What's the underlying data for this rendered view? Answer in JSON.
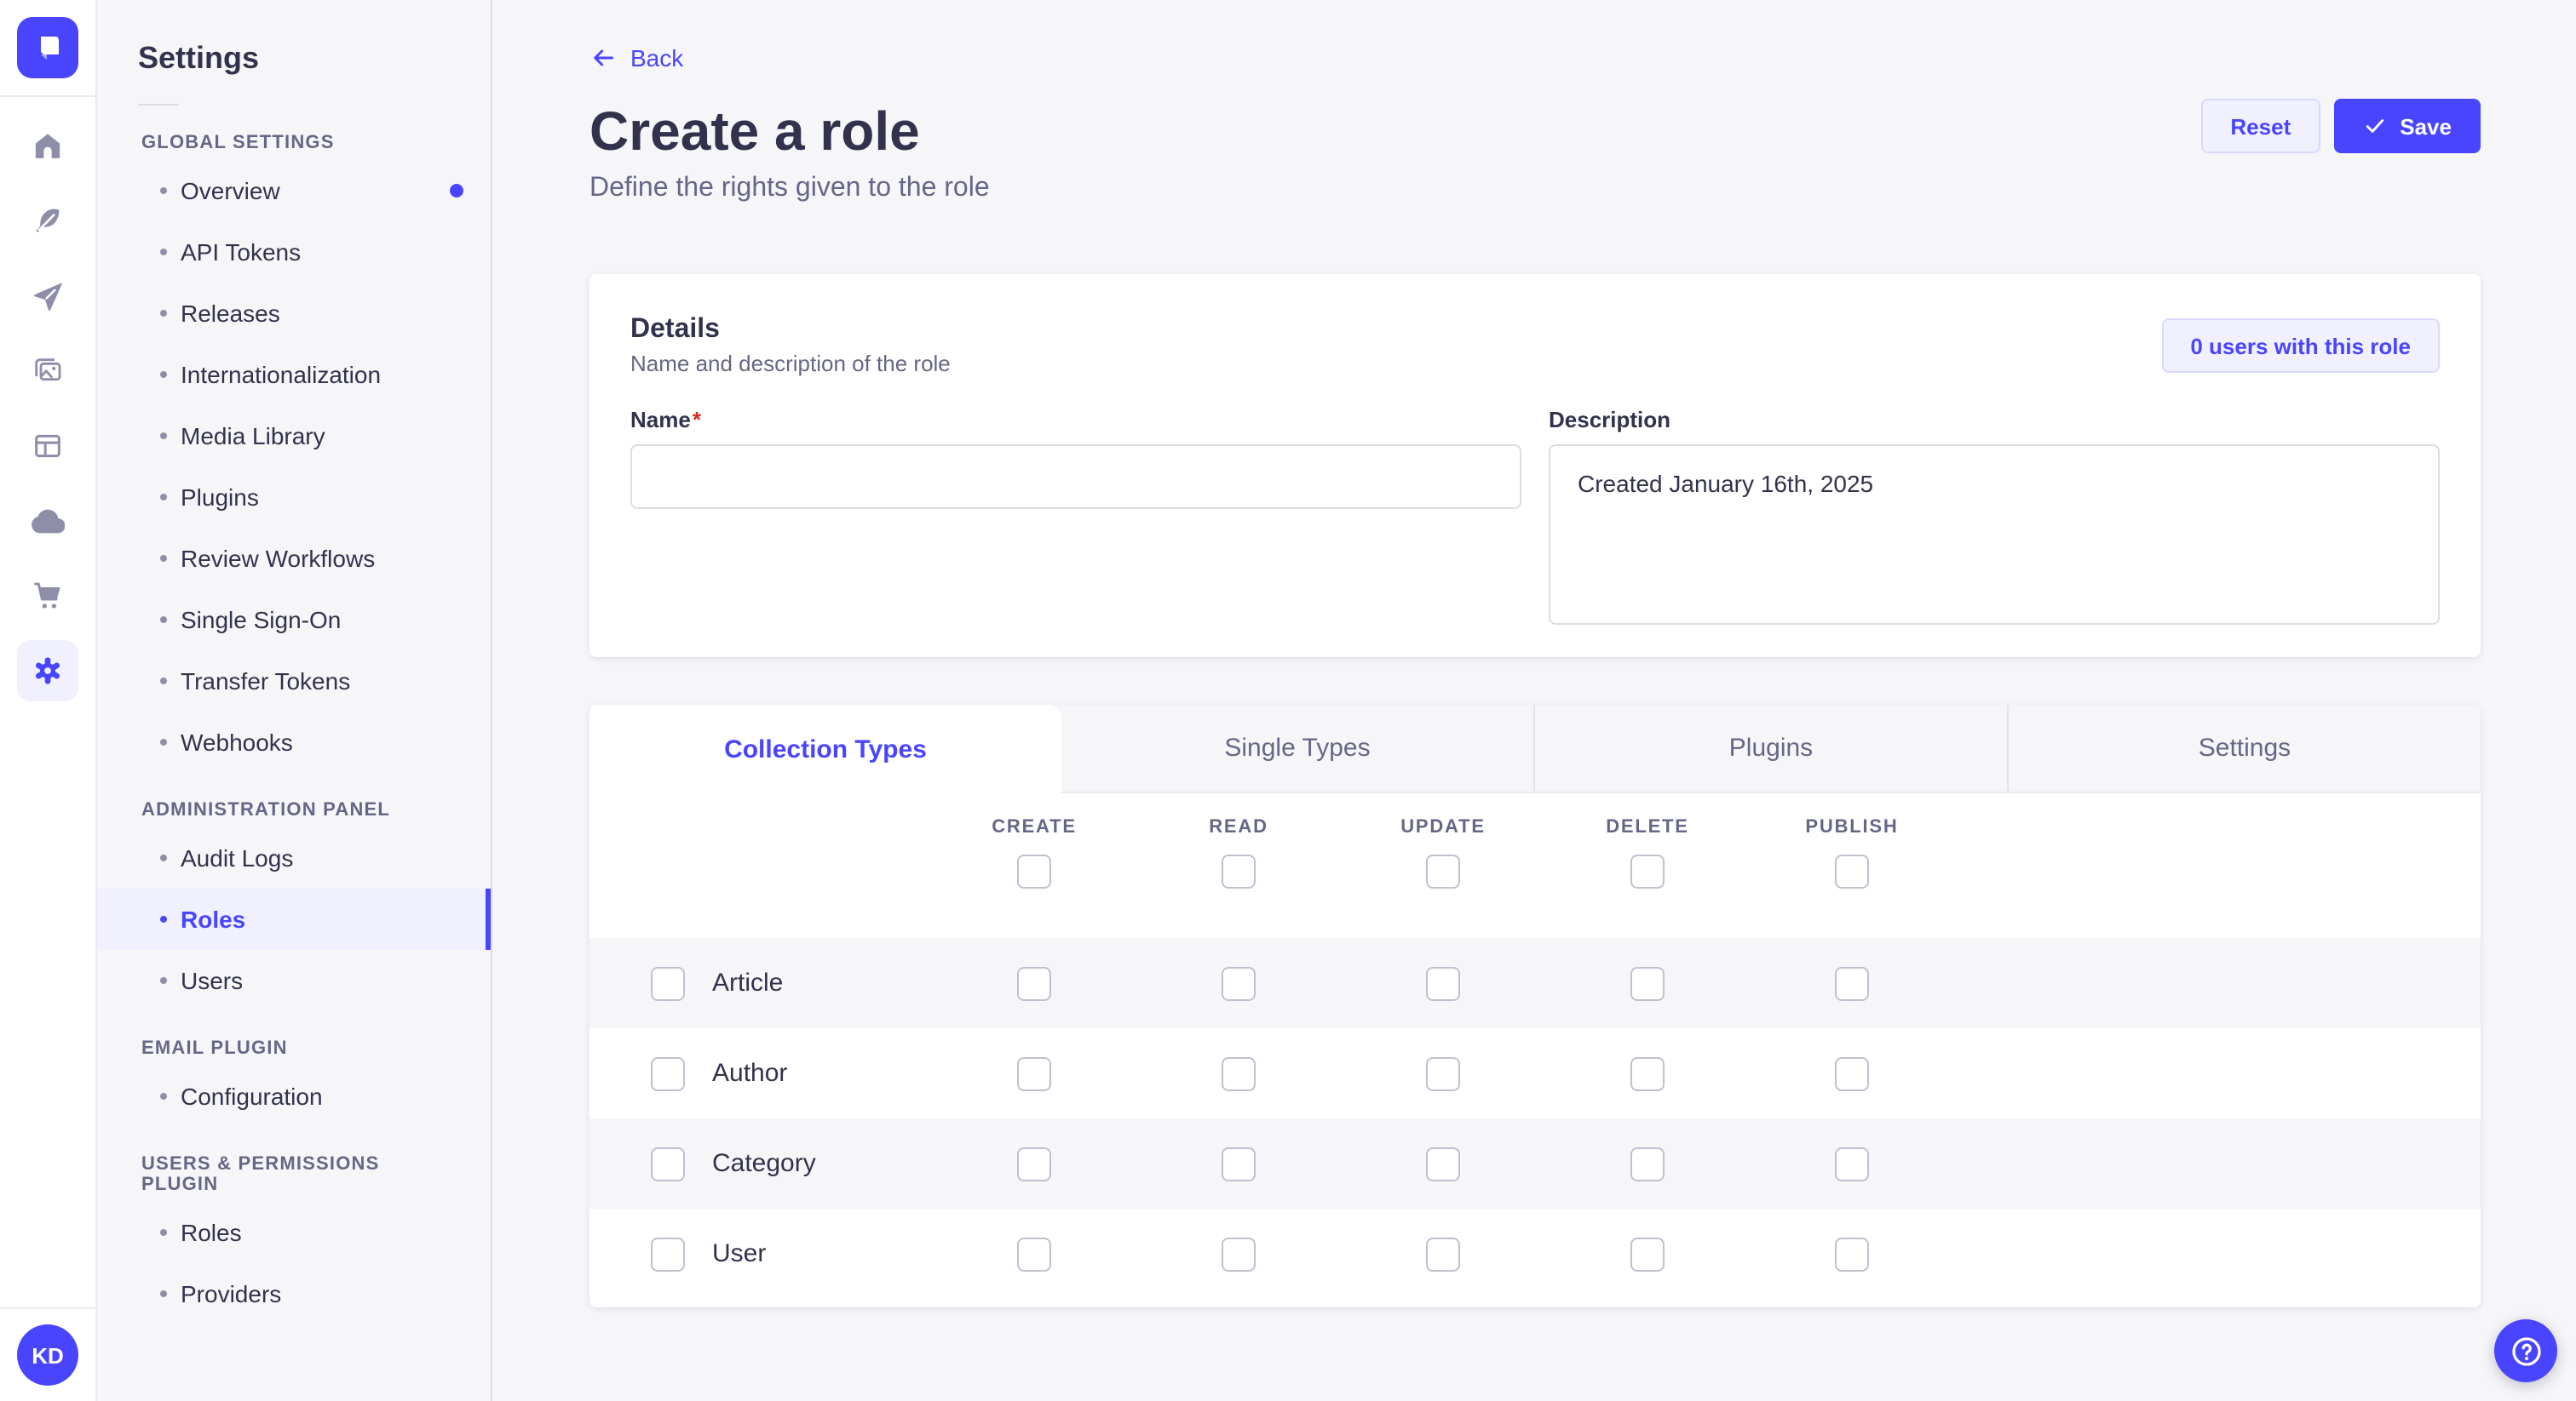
{
  "rail": {
    "logo": "strapi-logo",
    "icons": [
      {
        "name": "home-icon"
      },
      {
        "name": "feather-icon"
      },
      {
        "name": "paper-plane-icon"
      },
      {
        "name": "media-library-icon"
      },
      {
        "name": "layout-icon"
      },
      {
        "name": "cloud-icon"
      },
      {
        "name": "cart-icon"
      },
      {
        "name": "gear-icon",
        "active": true
      }
    ],
    "avatar_initials": "KD"
  },
  "subnav": {
    "title": "Settings",
    "sections": [
      {
        "label": "GLOBAL SETTINGS",
        "items": [
          {
            "label": "Overview",
            "notification": true
          },
          {
            "label": "API Tokens"
          },
          {
            "label": "Releases"
          },
          {
            "label": "Internationalization"
          },
          {
            "label": "Media Library"
          },
          {
            "label": "Plugins"
          },
          {
            "label": "Review Workflows"
          },
          {
            "label": "Single Sign-On"
          },
          {
            "label": "Transfer Tokens"
          },
          {
            "label": "Webhooks"
          }
        ]
      },
      {
        "label": "ADMINISTRATION PANEL",
        "items": [
          {
            "label": "Audit Logs"
          },
          {
            "label": "Roles",
            "active": true
          },
          {
            "label": "Users"
          }
        ]
      },
      {
        "label": "EMAIL PLUGIN",
        "items": [
          {
            "label": "Configuration"
          }
        ]
      },
      {
        "label": "USERS & PERMISSIONS PLUGIN",
        "items": [
          {
            "label": "Roles"
          },
          {
            "label": "Providers"
          }
        ]
      }
    ]
  },
  "header": {
    "back_label": "Back",
    "title": "Create a role",
    "subtitle": "Define the rights given to the role",
    "reset_label": "Reset",
    "save_label": "Save"
  },
  "details": {
    "title": "Details",
    "subtitle": "Name and description of the role",
    "users_badge": "0 users with this role",
    "name_label": "Name",
    "required_mark": "*",
    "name_value": "",
    "description_label": "Description",
    "description_value": "Created January 16th, 2025"
  },
  "permissions": {
    "tabs": [
      {
        "label": "Collection Types",
        "active": true
      },
      {
        "label": "Single Types"
      },
      {
        "label": "Plugins"
      },
      {
        "label": "Settings"
      }
    ],
    "columns": [
      "CREATE",
      "READ",
      "UPDATE",
      "DELETE",
      "PUBLISH"
    ],
    "rows": [
      {
        "label": "Article"
      },
      {
        "label": "Author"
      },
      {
        "label": "Category"
      },
      {
        "label": "User"
      }
    ]
  },
  "colors": {
    "primary": "#4945ff",
    "primary_bg": "#f0f0ff",
    "primary_border": "#d9d8ff",
    "page_bg": "#f6f6f9",
    "text": "#32324d",
    "muted": "#666687",
    "icon": "#8e8ea9",
    "checkbox_border": "#c0c0cf",
    "danger": "#d02b20"
  }
}
